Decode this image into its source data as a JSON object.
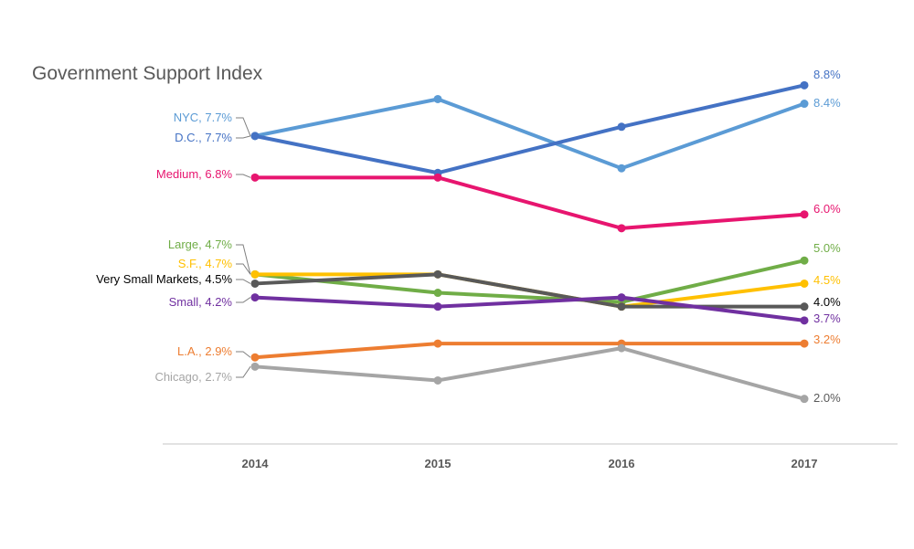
{
  "chart_data": {
    "type": "line",
    "title": "Government Support Index",
    "categories": [
      "2014",
      "2015",
      "2016",
      "2017"
    ],
    "series": [
      {
        "name": "NYC",
        "color": "#5B9BD5",
        "values": [
          7.7,
          8.5,
          7.0,
          8.4
        ],
        "start_label": "NYC, 7.7%",
        "end_label": "8.4%"
      },
      {
        "name": "D.C.",
        "color": "#4472C4",
        "values": [
          7.7,
          6.9,
          7.9,
          8.8
        ],
        "start_label": "D.C., 7.7%",
        "end_label": "8.8%"
      },
      {
        "name": "Medium",
        "color": "#E7156F",
        "values": [
          6.8,
          6.8,
          5.7,
          6.0
        ],
        "start_label": "Medium, 6.8%",
        "end_label": "6.0%"
      },
      {
        "name": "Large",
        "color": "#70AD47",
        "values": [
          4.7,
          4.3,
          4.1,
          5.0
        ],
        "start_label": "Large, 4.7%",
        "end_label": "5.0%"
      },
      {
        "name": "S.F.",
        "color": "#FFC000",
        "values": [
          4.7,
          4.7,
          4.0,
          4.5
        ],
        "start_label": "S.F., 4.7%",
        "end_label": "4.5%"
      },
      {
        "name": "Very Small Markets",
        "color": "#595959",
        "values": [
          4.5,
          4.7,
          4.0,
          4.0
        ],
        "start_label": "Very Small Markets, 4.5%",
        "end_label": "4.0%"
      },
      {
        "name": "Small",
        "color": "#7030A0",
        "values": [
          4.2,
          4.0,
          4.2,
          3.7
        ],
        "start_label": "Small, 4.2%",
        "end_label": "3.7%"
      },
      {
        "name": "L.A.",
        "color": "#ED7D31",
        "values": [
          2.9,
          3.2,
          3.2,
          3.2
        ],
        "start_label": "L.A., 2.9%",
        "end_label": "3.2%"
      },
      {
        "name": "Chicago",
        "color": "#A5A5A5",
        "values": [
          2.7,
          2.4,
          3.1,
          2.0
        ],
        "start_label": "Chicago, 2.7%",
        "end_label": "2.0%"
      }
    ],
    "ylim": [
      1.3,
      9.5
    ],
    "grid": false,
    "legend": "none",
    "xlabel": "",
    "ylabel": ""
  }
}
